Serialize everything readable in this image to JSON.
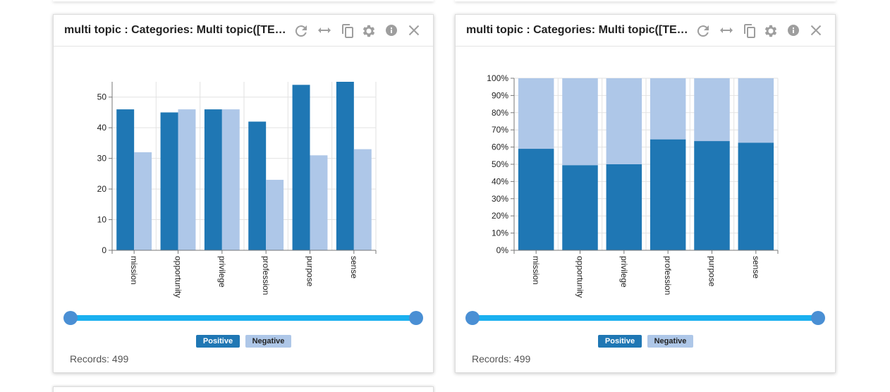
{
  "colors": {
    "positive": "#1f77b4",
    "negative": "#aec7e8",
    "slider": "#1ab0f0",
    "handle": "#4a8fd4",
    "icon": "#9e9e9e"
  },
  "panels": [
    {
      "title": "multi topic : Categories: Multi topic([TEXT]) || Values: Sentiment",
      "toolbar": [
        "refresh-icon",
        "expand-horizontal-icon",
        "copy-icon",
        "settings-icon",
        "info-icon",
        "close-icon"
      ],
      "legend": {
        "positive": "Positive",
        "negative": "Negative"
      },
      "records": "Records: 499",
      "chart_data": {
        "type": "bar",
        "categories": [
          "mission",
          "opportunity",
          "privilege",
          "profession",
          "purpose",
          "sense"
        ],
        "series": [
          {
            "name": "Positive",
            "values": [
              46,
              45,
              46,
              42,
              54,
              55
            ]
          },
          {
            "name": "Negative",
            "values": [
              32,
              46,
              46,
              23,
              31,
              33
            ]
          }
        ],
        "ylim": [
          0,
          55
        ],
        "yticks": [
          "0",
          "10",
          "20",
          "30",
          "40",
          "50"
        ],
        "grid": true,
        "legend": "bottom"
      }
    },
    {
      "title": "multi topic : Categories: Multi topic([TEXT]) || Values: Sentiment",
      "toolbar": [
        "refresh-icon",
        "expand-horizontal-icon",
        "copy-icon",
        "settings-icon",
        "info-icon",
        "close-icon"
      ],
      "legend": {
        "positive": "Positive",
        "negative": "Negative"
      },
      "records": "Records: 499",
      "chart_data": {
        "type": "bar",
        "stacked": "percent",
        "categories": [
          "mission",
          "opportunity",
          "privilege",
          "profession",
          "purpose",
          "sense"
        ],
        "series": [
          {
            "name": "Positive",
            "values": [
              59,
              49.5,
              50,
              64.5,
              63.5,
              62.5
            ]
          },
          {
            "name": "Negative",
            "values": [
              41,
              50.5,
              50,
              35.5,
              36.5,
              37.5
            ]
          }
        ],
        "ylim": [
          0,
          100
        ],
        "yticks": [
          "0%",
          "10%",
          "20%",
          "30%",
          "40%",
          "50%",
          "60%",
          "70%",
          "80%",
          "90%",
          "100%"
        ],
        "grid": true,
        "legend": "bottom"
      }
    }
  ]
}
